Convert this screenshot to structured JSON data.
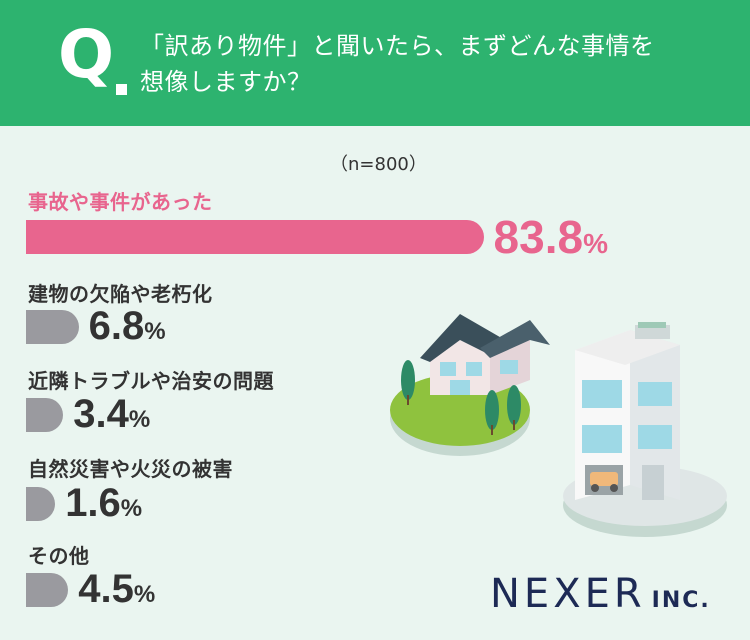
{
  "header": {
    "q_letter": "Q",
    "question_line1": "「訳あり物件」と聞いたら、まずどんな事情を",
    "question_line2": "想像しますか？"
  },
  "sample": "（n=800）",
  "colors": {
    "header_bg": "#2db36f",
    "highlight": "#e8658e",
    "bar": "#9a9a9f",
    "background": "#eaf5f0"
  },
  "chart_data": {
    "type": "bar",
    "orientation": "horizontal",
    "categories": [
      "事故や事件があった",
      "建物の欠陥や老朽化",
      "近隣トラブルや治安の問題",
      "自然災害や火災の被害",
      "その他"
    ],
    "values": [
      83.8,
      6.8,
      3.4,
      1.6,
      4.5
    ],
    "value_labels": [
      "83.8",
      "6.8",
      "3.4",
      "1.6",
      "4.5"
    ],
    "unit": "%",
    "highlight_index": 0,
    "xlim": [
      0,
      100
    ]
  },
  "logo": {
    "main": "NEXER",
    "sub": "INC."
  }
}
